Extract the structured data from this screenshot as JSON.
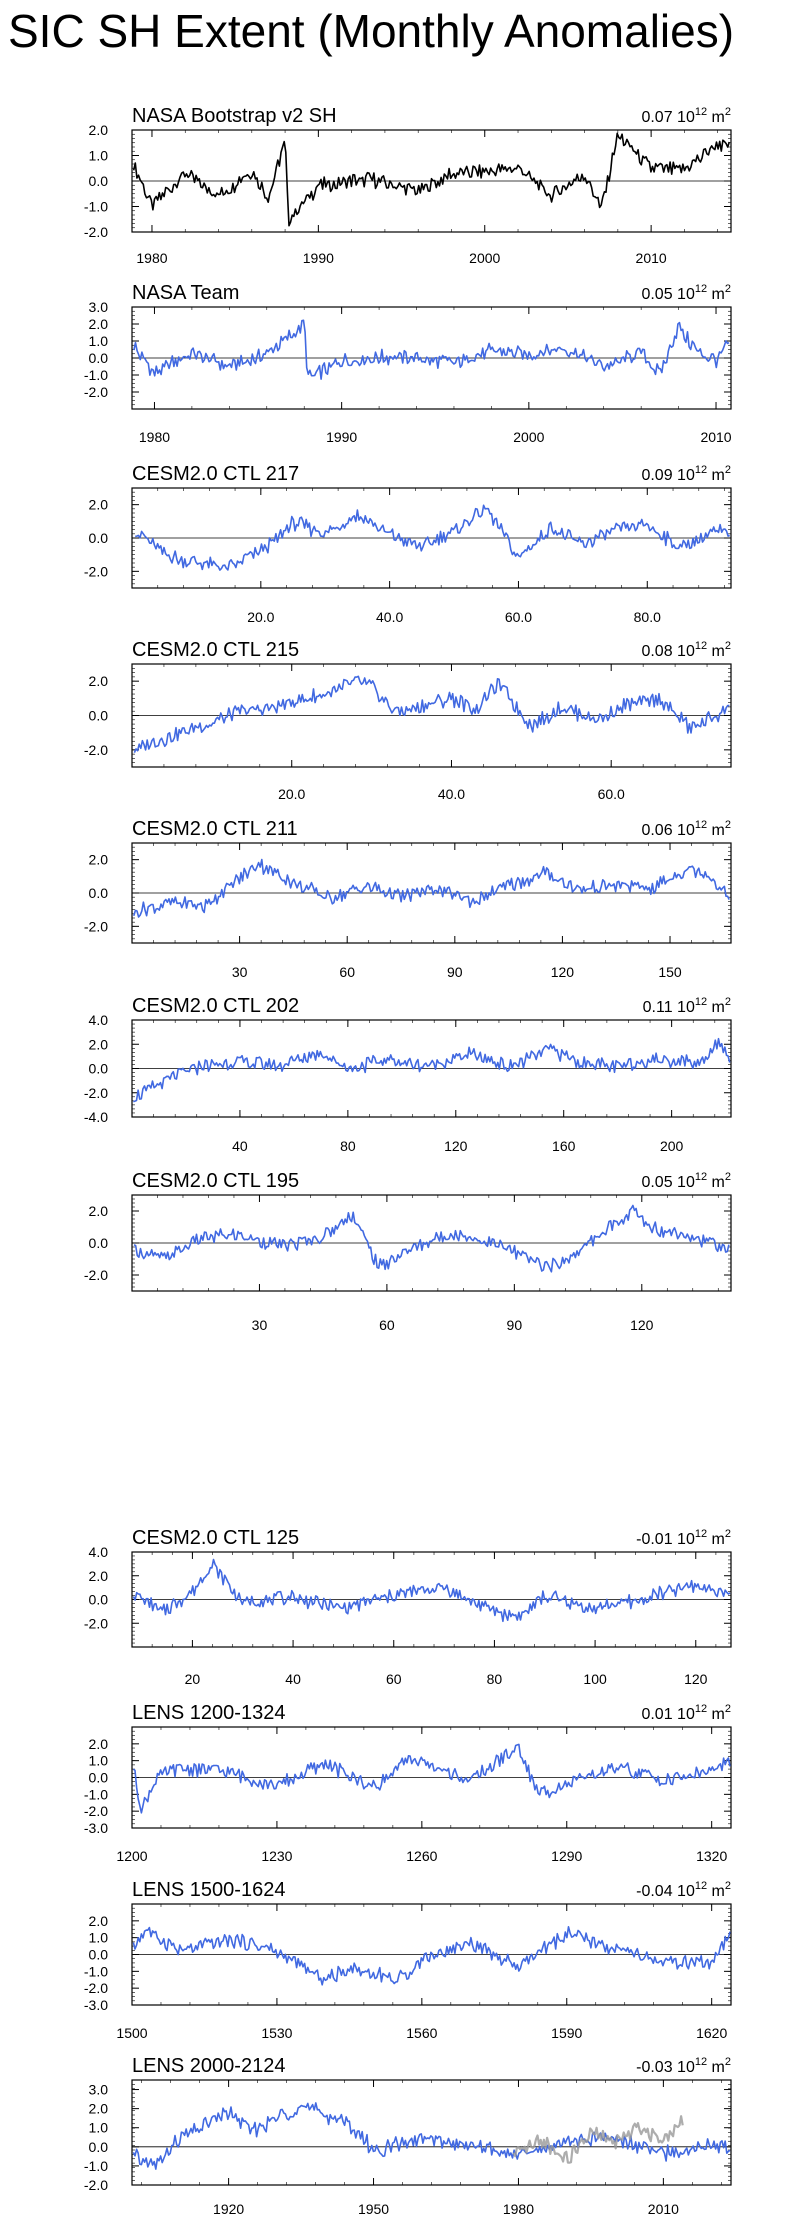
{
  "title": "SIC SH Extent (Monthly Anomalies)",
  "unit_base": "10",
  "unit_exp": "12",
  "unit_m": "m",
  "unit_sq": "2",
  "chart_data": [
    {
      "type": "line",
      "title": "NASA Bootstrap v2 SH",
      "trend": "0.07",
      "color": "#000000",
      "ylim": [
        -2.0,
        2.0
      ],
      "yticks": [
        "2.0",
        "1.0",
        "0.0",
        "-1.0",
        "-2.0"
      ],
      "ytick_values": [
        2.0,
        1.0,
        0.0,
        -1.0,
        -2.0
      ],
      "xlim": [
        1978.8,
        2014.8
      ],
      "xticks": [
        1980,
        1990,
        2000,
        2010
      ],
      "xtick_labels": [
        "1980",
        "1990",
        "2000",
        "2010"
      ],
      "series": [
        {
          "x": [
            1978.9,
            1980,
            1982,
            1984,
            1986,
            1987,
            1988,
            1988.2,
            1990,
            1993,
            1996,
            1998,
            2000,
            2002,
            2004,
            2006,
            2007,
            2008,
            2010,
            2012,
            2013,
            2014,
            2014.7
          ],
          "values": [
            0.6,
            -1.0,
            0.3,
            -0.6,
            0.4,
            -0.7,
            1.6,
            -1.6,
            -0.2,
            0.1,
            -0.4,
            0.3,
            0.4,
            0.5,
            -0.6,
            0.3,
            -1.1,
            1.8,
            0.5,
            0.4,
            0.9,
            1.5,
            1.3
          ]
        }
      ]
    },
    {
      "type": "line",
      "title": "NASA Team",
      "trend": "0.05",
      "color": "#4169e1",
      "ylim": [
        -3.0,
        3.0
      ],
      "yticks": [
        "3.0",
        "2.0",
        "1.0",
        "0.0",
        "-1.0",
        "-2.0"
      ],
      "ytick_values": [
        3.0,
        2.0,
        1.0,
        0.0,
        -1.0,
        -2.0
      ],
      "xlim": [
        1978.8,
        2010.8
      ],
      "xticks": [
        1980,
        1990,
        2000,
        2010
      ],
      "xtick_labels": [
        "1980",
        "1990",
        "2000",
        "2010"
      ],
      "series": [
        {
          "x": [
            1978.9,
            1980,
            1982,
            1984,
            1986,
            1988,
            1988.2,
            1990,
            1993,
            1996,
            1998,
            2000,
            2002,
            2004,
            2006,
            2007,
            2008,
            2009,
            2010,
            2010.7
          ],
          "values": [
            0.7,
            -0.9,
            0.3,
            -0.5,
            0.2,
            2.0,
            -1.2,
            -0.2,
            0.1,
            -0.3,
            0.4,
            0.2,
            0.6,
            -0.5,
            0.3,
            -0.9,
            1.8,
            0.4,
            -0.2,
            1.0
          ]
        }
      ]
    },
    {
      "type": "line",
      "title": "CESM2.0 CTL 217",
      "trend": "0.09",
      "color": "#4169e1",
      "ylim": [
        -3.0,
        3.0
      ],
      "yticks": [
        "2.0",
        "0.0",
        "-2.0"
      ],
      "ytick_values": [
        2.0,
        0.0,
        -2.0
      ],
      "xlim": [
        0,
        93
      ],
      "xticks": [
        20,
        40,
        60,
        80
      ],
      "xtick_labels": [
        "20.0",
        "40.0",
        "60.0",
        "80.0"
      ],
      "series": [
        {
          "x": [
            0.5,
            5,
            10,
            15,
            20,
            22,
            25,
            30,
            35,
            40,
            45,
            50,
            55,
            60,
            65,
            70,
            75,
            80,
            85,
            90,
            92.8
          ],
          "values": [
            0.5,
            -1.0,
            -1.5,
            -1.8,
            -0.8,
            -0.2,
            0.9,
            0.3,
            1.4,
            0.2,
            -0.5,
            0.4,
            1.8,
            -1.2,
            0.6,
            -0.4,
            0.5,
            0.8,
            -0.6,
            0.3,
            0.4
          ]
        }
      ]
    },
    {
      "type": "line",
      "title": "CESM2.0 CTL 215",
      "trend": "0.08",
      "color": "#4169e1",
      "ylim": [
        -3.0,
        3.0
      ],
      "yticks": [
        "2.0",
        "0.0",
        "-2.0"
      ],
      "ytick_values": [
        2.0,
        0.0,
        -2.0
      ],
      "xlim": [
        0,
        75
      ],
      "xticks": [
        20,
        40,
        60
      ],
      "xtick_labels": [
        "20.0",
        "40.0",
        "60.0"
      ],
      "series": [
        {
          "x": [
            0.3,
            3,
            6,
            10,
            14,
            18,
            22,
            26,
            28,
            30,
            33,
            36,
            40,
            43,
            46,
            50,
            54,
            58,
            62,
            66,
            70,
            74.8
          ],
          "values": [
            -2.0,
            -1.5,
            -1.0,
            -0.4,
            0.3,
            0.5,
            1.0,
            1.5,
            2.0,
            1.7,
            0.2,
            0.5,
            1.0,
            0.4,
            1.8,
            -0.6,
            0.5,
            -0.3,
            0.6,
            1.0,
            -0.8,
            0.5
          ]
        }
      ]
    },
    {
      "type": "line",
      "title": "CESM2.0 CTL 211",
      "trend": "0.06",
      "color": "#4169e1",
      "ylim": [
        -3.0,
        3.0
      ],
      "yticks": [
        "2.0",
        "0.0",
        "-2.0"
      ],
      "ytick_values": [
        2.0,
        0.0,
        -2.0
      ],
      "xlim": [
        0,
        167
      ],
      "xticks": [
        30,
        60,
        90,
        120,
        150
      ],
      "xtick_labels": [
        "30",
        "60",
        "90",
        "120",
        "150"
      ],
      "series": [
        {
          "x": [
            0.5,
            10,
            20,
            28,
            35,
            45,
            55,
            65,
            75,
            85,
            95,
            105,
            115,
            125,
            135,
            145,
            155,
            160,
            166.5
          ],
          "values": [
            -1.2,
            -0.6,
            -0.8,
            0.5,
            1.8,
            0.6,
            -0.3,
            0.4,
            -0.2,
            0.3,
            -0.5,
            0.4,
            1.2,
            0.2,
            0.5,
            0.3,
            1.5,
            1.2,
            -0.2
          ]
        }
      ]
    },
    {
      "type": "line",
      "title": "CESM2.0 CTL 202",
      "trend": "0.11",
      "color": "#4169e1",
      "ylim": [
        -4.0,
        4.0
      ],
      "yticks": [
        "4.0",
        "2.0",
        "0.0",
        "-2.0",
        "-4.0"
      ],
      "ytick_values": [
        4.0,
        2.0,
        0.0,
        -2.0,
        -4.0
      ],
      "xlim": [
        0,
        222
      ],
      "xticks": [
        40,
        80,
        120,
        160,
        200
      ],
      "xtick_labels": [
        "40",
        "80",
        "120",
        "160",
        "200"
      ],
      "series": [
        {
          "x": [
            0.5,
            10,
            25,
            40,
            55,
            70,
            80,
            95,
            110,
            125,
            140,
            155,
            165,
            180,
            195,
            210,
            218,
            221.5
          ],
          "values": [
            -2.5,
            -1.2,
            0.2,
            0.6,
            0.2,
            1.4,
            0.0,
            0.7,
            0.2,
            1.2,
            0.1,
            1.6,
            0.6,
            0.1,
            0.8,
            0.4,
            2.4,
            0.6
          ]
        }
      ]
    },
    {
      "type": "line",
      "title": "CESM2.0 CTL 195",
      "trend": "0.05",
      "color": "#4169e1",
      "ylim": [
        -3.0,
        3.0
      ],
      "yticks": [
        "2.0",
        "0.0",
        "-2.0"
      ],
      "ytick_values": [
        2.0,
        0.0,
        -2.0
      ],
      "xlim": [
        0,
        141
      ],
      "xticks": [
        30,
        60,
        90,
        120
      ],
      "xtick_labels": [
        "30",
        "60",
        "90",
        "120"
      ],
      "series": [
        {
          "x": [
            0.5,
            8,
            16,
            25,
            35,
            45,
            52,
            58,
            66,
            75,
            85,
            95,
            100,
            110,
            118,
            122,
            130,
            140.5
          ],
          "values": [
            -0.5,
            -1.0,
            0.3,
            0.5,
            -0.2,
            0.4,
            1.8,
            -1.5,
            -0.3,
            0.6,
            0.0,
            -1.2,
            -1.5,
            0.5,
            2.0,
            1.0,
            0.6,
            -0.4
          ]
        }
      ]
    },
    {
      "type": "line",
      "title": "CESM2.0 CTL 125",
      "trend": "-0.01",
      "color": "#4169e1",
      "ylim": [
        -4.0,
        4.0
      ],
      "yticks": [
        "4.0",
        "2.0",
        "0.0",
        "-2.0"
      ],
      "ytick_values": [
        4.0,
        2.0,
        0.0,
        -2.0
      ],
      "xlim": [
        8,
        127
      ],
      "xticks": [
        20,
        40,
        60,
        80,
        100,
        120
      ],
      "xtick_labels": [
        "20",
        "40",
        "60",
        "80",
        "100",
        "120"
      ],
      "series": [
        {
          "x": [
            8.3,
            14,
            20,
            24,
            30,
            40,
            50,
            60,
            70,
            80,
            85,
            90,
            100,
            110,
            120,
            126.8
          ],
          "values": [
            0.5,
            -1.0,
            0.6,
            3.0,
            -0.3,
            0.2,
            -0.8,
            0.4,
            1.0,
            -1.0,
            -1.5,
            0.3,
            -0.8,
            0.1,
            1.2,
            0.4
          ]
        }
      ]
    },
    {
      "type": "line",
      "title": "LENS 1200-1324",
      "trend": "0.01",
      "color": "#4169e1",
      "ylim": [
        -3.0,
        3.0
      ],
      "yticks": [
        "2.0",
        "1.0",
        "0.0",
        "-1.0",
        "-2.0",
        "-3.0"
      ],
      "ytick_values": [
        2.0,
        1.0,
        0.0,
        -1.0,
        -2.0,
        -3.0
      ],
      "xlim": [
        1200,
        1324
      ],
      "xticks": [
        1200,
        1230,
        1260,
        1290,
        1320
      ],
      "xtick_labels": [
        "1200",
        "1230",
        "1260",
        "1290",
        "1320"
      ],
      "series": [
        {
          "x": [
            1200.3,
            1202,
            1205,
            1210,
            1220,
            1230,
            1240,
            1250,
            1258,
            1265,
            1270,
            1280,
            1284,
            1290,
            1300,
            1310,
            1320,
            1323.8
          ],
          "values": [
            0.5,
            -2.0,
            0.0,
            0.6,
            0.3,
            -0.5,
            0.8,
            -0.6,
            1.2,
            0.3,
            -0.2,
            1.8,
            -1.0,
            -0.4,
            0.6,
            -0.2,
            0.4,
            0.9
          ]
        }
      ]
    },
    {
      "type": "line",
      "title": "LENS 1500-1624",
      "trend": "-0.04",
      "color": "#4169e1",
      "ylim": [
        -3.0,
        3.0
      ],
      "yticks": [
        "2.0",
        "1.0",
        "0.0",
        "-1.0",
        "-2.0",
        "-3.0"
      ],
      "ytick_values": [
        2.0,
        1.0,
        0.0,
        -1.0,
        -2.0,
        -3.0
      ],
      "xlim": [
        1500,
        1624
      ],
      "xticks": [
        1500,
        1530,
        1560,
        1590,
        1620
      ],
      "xtick_labels": [
        "1500",
        "1530",
        "1560",
        "1590",
        "1620"
      ],
      "series": [
        {
          "x": [
            1500.3,
            1503,
            1510,
            1520,
            1528,
            1540,
            1545,
            1555,
            1560,
            1570,
            1580,
            1590,
            1600,
            1610,
            1620,
            1623.8
          ],
          "values": [
            0.5,
            1.5,
            0.2,
            0.9,
            0.4,
            -1.5,
            -0.8,
            -1.5,
            -0.3,
            0.7,
            -0.8,
            1.2,
            0.3,
            -0.5,
            -0.6,
            1.2
          ]
        }
      ]
    },
    {
      "type": "line",
      "title": "LENS 2000-2124",
      "trend": "-0.03",
      "color": "#4169e1",
      "ylim": [
        -2.0,
        3.5
      ],
      "yticks": [
        "3.0",
        "2.0",
        "1.0",
        "0.0",
        "-1.0",
        "-2.0"
      ],
      "ytick_values": [
        3.0,
        2.0,
        1.0,
        0.0,
        -1.0,
        -2.0
      ],
      "xlim": [
        1900,
        2024
      ],
      "xticks": [
        1920,
        1950,
        1980,
        2010
      ],
      "xtick_labels": [
        "1920",
        "1950",
        "1980",
        "2010"
      ],
      "series": [
        {
          "x": [
            1900.3,
            1905,
            1910,
            1920,
            1925,
            1935,
            1945,
            1950,
            1960,
            1970,
            1980,
            1990,
            2000,
            2010,
            2020,
            2023.8
          ],
          "values": [
            -0.5,
            -1.0,
            0.5,
            1.8,
            0.8,
            2.2,
            1.2,
            -0.2,
            0.4,
            0.1,
            -0.5,
            0.3,
            0.5,
            -0.4,
            0.2,
            0.0
          ]
        },
        {
          "color": "#999999",
          "x": [
            1979,
            1985,
            1990,
            1995,
            2000,
            2005,
            2010,
            2014
          ],
          "values": [
            -0.5,
            0.3,
            -0.6,
            0.7,
            0.2,
            1.0,
            0.4,
            1.5
          ]
        }
      ]
    }
  ]
}
